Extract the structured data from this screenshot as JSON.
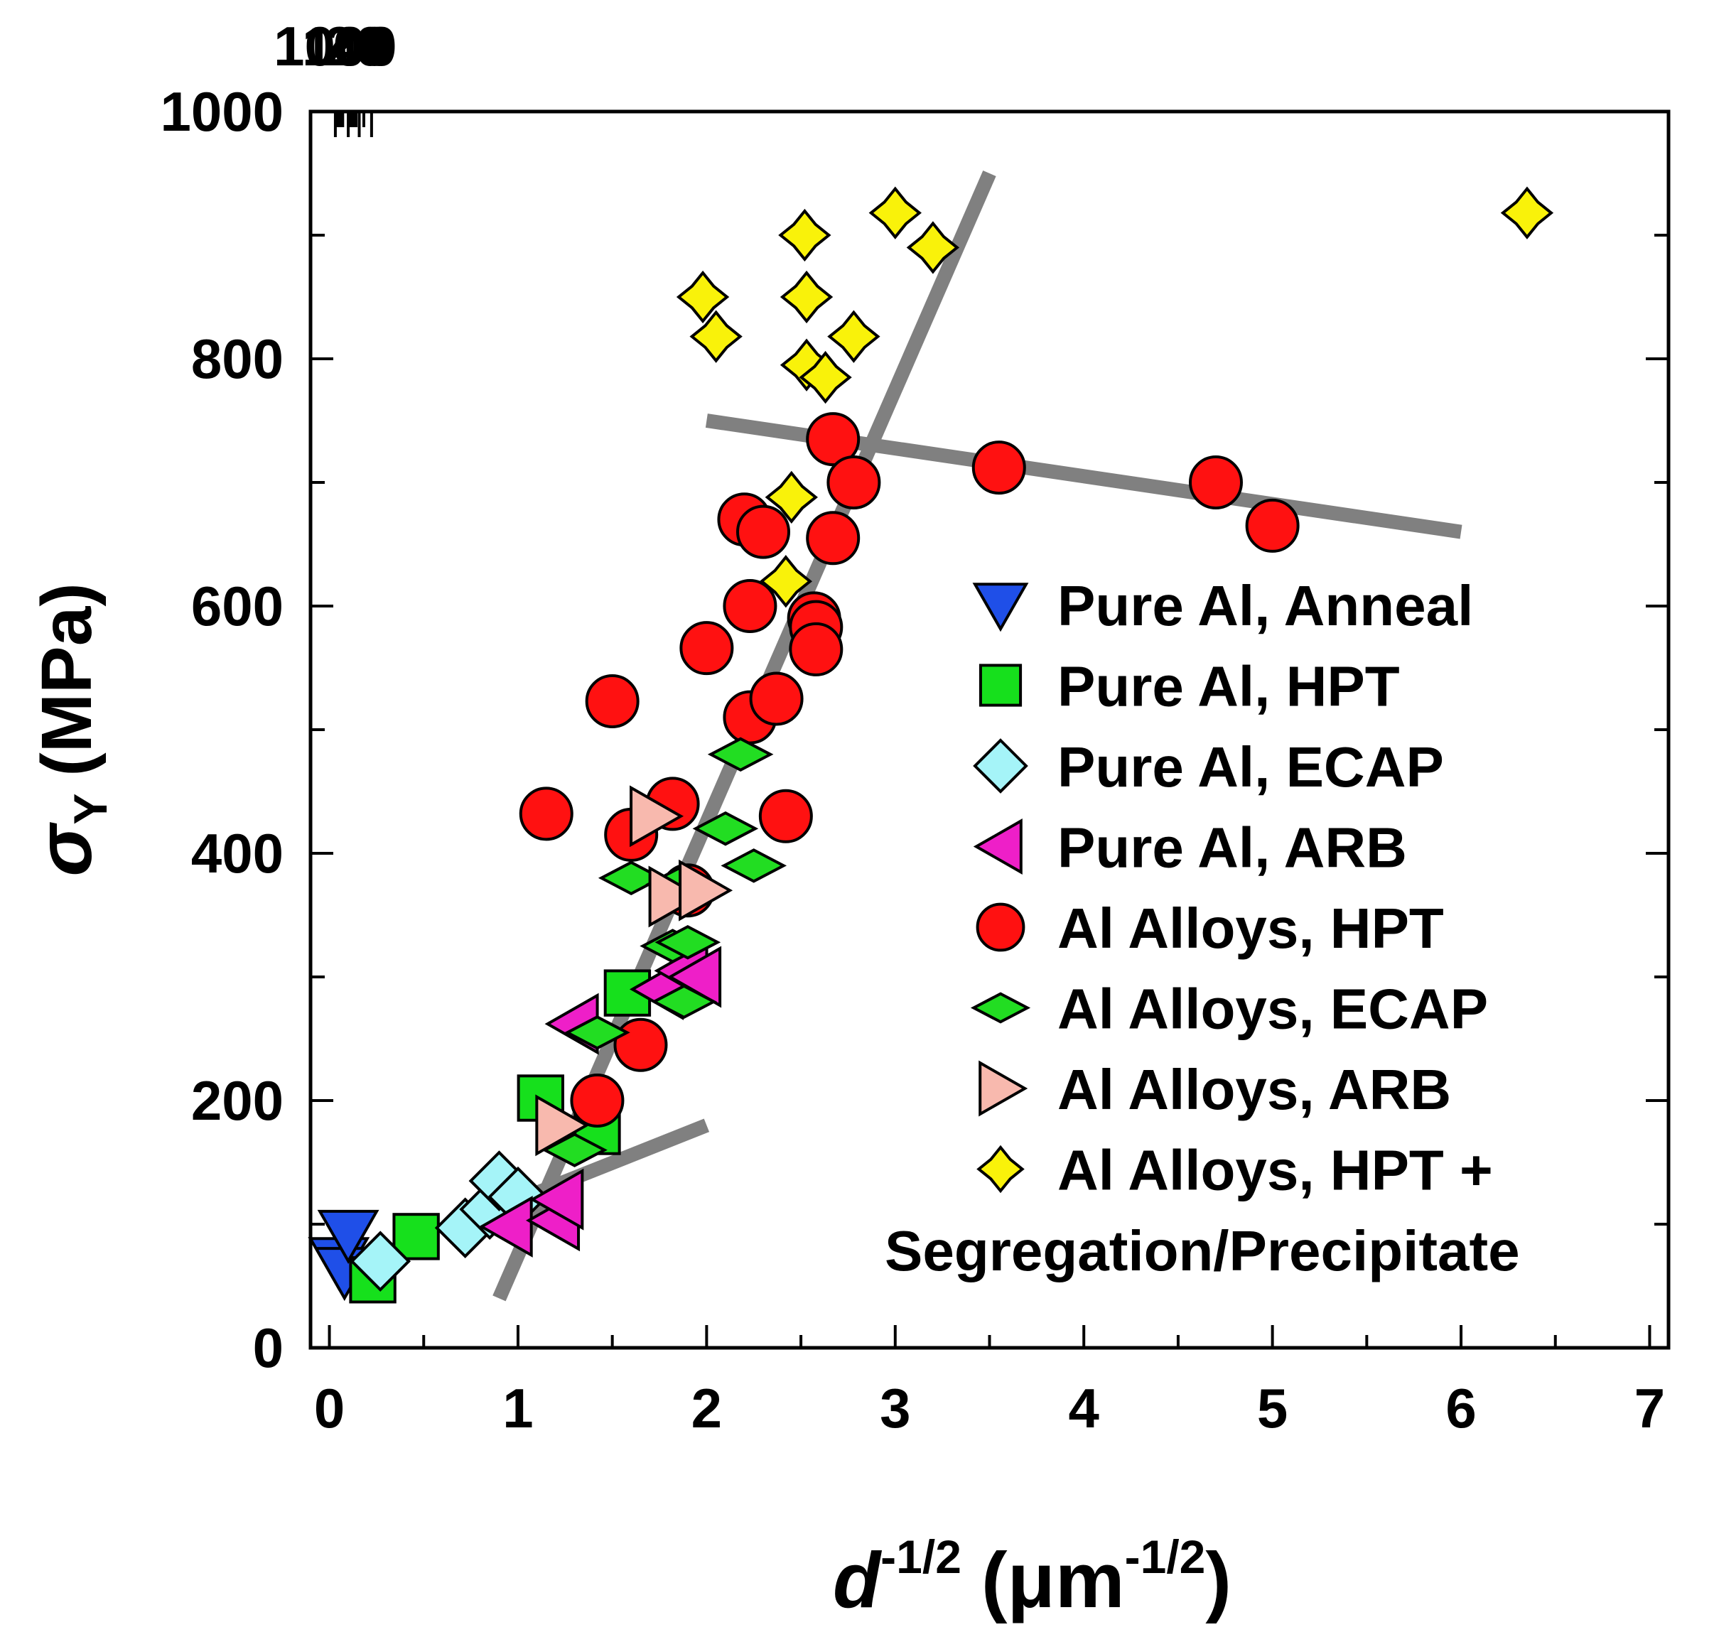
{
  "chart_data": {
    "type": "scatter",
    "title": "",
    "xlabel": {
      "base": "d",
      "exponent": "-1/2",
      "unit_open": "(",
      "unit": "μm",
      "unit_exponent": "-1/2",
      "unit_close": ")"
    },
    "ylabel": {
      "symbol": "σ",
      "subscript": "Y",
      "unit": "(MPa)"
    },
    "xlim": [
      -0.1,
      7.1
    ],
    "ylim": [
      0,
      1000
    ],
    "x_ticks": [
      0,
      1,
      2,
      3,
      4,
      5,
      6,
      7
    ],
    "x_tick_labels": [
      "0",
      "1",
      "2",
      "3",
      "4",
      "5",
      "6",
      "7"
    ],
    "y_ticks": [
      0,
      200,
      400,
      600,
      800,
      1000
    ],
    "y_tick_labels": [
      "0",
      "200",
      "400",
      "600",
      "800",
      "1000"
    ],
    "y_minor_ticks": [
      100,
      300,
      500,
      700,
      900
    ],
    "top_axis": {
      "label_values": [
        1000,
        100,
        40,
        20
      ],
      "labels": [
        "1000",
        "100",
        "40",
        "20"
      ],
      "minor_d_values": [
        900,
        800,
        700,
        600,
        500,
        400,
        300,
        200,
        90,
        80,
        70,
        60,
        50,
        30
      ]
    },
    "fit_lines": [
      {
        "x": [
          0.6,
          2.0
        ],
        "y": [
          95,
          180
        ]
      },
      {
        "x": [
          0.9,
          3.5
        ],
        "y": [
          40,
          950
        ]
      },
      {
        "x": [
          2.0,
          6.0
        ],
        "y": [
          750,
          660
        ]
      }
    ],
    "legend_position": "lower-right",
    "series": [
      {
        "name": "Pure Al, Anneal",
        "marker": "triangle-down",
        "color": "#1f4fe8",
        "points": [
          [
            0.05,
            70
          ],
          [
            0.08,
            62
          ],
          [
            0.1,
            92
          ]
        ]
      },
      {
        "name": "Pure Al, HPT",
        "marker": "square",
        "color": "#16e01c",
        "points": [
          [
            0.23,
            55
          ],
          [
            0.46,
            90
          ],
          [
            1.12,
            202
          ],
          [
            1.42,
            175
          ],
          [
            1.58,
            287
          ]
        ]
      },
      {
        "name": "Pure Al, ECAP",
        "marker": "diamond",
        "color": "#a5f4f8",
        "points": [
          [
            0.27,
            70
          ],
          [
            0.72,
            97
          ],
          [
            0.85,
            112
          ],
          [
            0.9,
            135
          ],
          [
            1.0,
            122
          ]
        ]
      },
      {
        "name": "Pure Al, ARB",
        "marker": "triangle-left",
        "color": "#ee1fc8",
        "points": [
          [
            0.95,
            98
          ],
          [
            1.2,
            103
          ],
          [
            1.22,
            120
          ],
          [
            1.3,
            262
          ],
          [
            1.75,
            290
          ],
          [
            1.88,
            305
          ],
          [
            1.95,
            300
          ]
        ]
      },
      {
        "name": "Al Alloys, HPT",
        "marker": "circle",
        "color": "#ff1111",
        "points": [
          [
            1.15,
            432
          ],
          [
            1.42,
            200
          ],
          [
            1.5,
            523
          ],
          [
            1.6,
            415
          ],
          [
            1.65,
            245
          ],
          [
            1.82,
            440
          ],
          [
            1.9,
            370
          ],
          [
            2.0,
            566
          ],
          [
            2.2,
            670
          ],
          [
            2.23,
            600
          ],
          [
            2.23,
            510
          ],
          [
            2.3,
            660
          ],
          [
            2.37,
            525
          ],
          [
            2.42,
            430
          ],
          [
            2.57,
            590
          ],
          [
            2.58,
            583
          ],
          [
            2.58,
            565
          ],
          [
            2.67,
            735
          ],
          [
            2.67,
            655
          ],
          [
            2.78,
            700
          ],
          [
            3.55,
            712
          ],
          [
            4.7,
            700
          ],
          [
            5.0,
            665
          ]
        ]
      },
      {
        "name": "Al Alloys, ECAP",
        "marker": "diamond-wide",
        "color": "#22dd22",
        "points": [
          [
            1.3,
            160
          ],
          [
            1.42,
            255
          ],
          [
            1.6,
            380
          ],
          [
            1.82,
            325
          ],
          [
            1.85,
            375
          ],
          [
            1.88,
            280
          ],
          [
            1.9,
            328
          ],
          [
            2.1,
            420
          ],
          [
            2.18,
            480
          ],
          [
            2.25,
            390
          ]
        ]
      },
      {
        "name": "Al Alloys, ARB",
        "marker": "triangle-right",
        "color": "#f8b9ae",
        "points": [
          [
            1.22,
            180
          ],
          [
            1.72,
            430
          ],
          [
            1.82,
            365
          ],
          [
            1.98,
            370
          ]
        ]
      },
      {
        "name": "Al Alloys, HPT + Segregation/Precipitate",
        "marker": "star4",
        "color": "#f9f20a",
        "points": [
          [
            1.98,
            850
          ],
          [
            2.05,
            818
          ],
          [
            2.42,
            620
          ],
          [
            2.45,
            688
          ],
          [
            2.52,
            900
          ],
          [
            2.53,
            850
          ],
          [
            2.53,
            795
          ],
          [
            2.63,
            785
          ],
          [
            2.78,
            818
          ],
          [
            3.0,
            918
          ],
          [
            3.2,
            890
          ],
          [
            6.35,
            918
          ]
        ]
      }
    ]
  },
  "legend": {
    "entries": [
      {
        "label": "Pure Al, Anneal"
      },
      {
        "label": "Pure Al, HPT"
      },
      {
        "label": "Pure Al, ECAP"
      },
      {
        "label": "Pure Al, ARB"
      },
      {
        "label": "Al Alloys, HPT"
      },
      {
        "label": "Al Alloys, ECAP"
      },
      {
        "label": "Al Alloys, ARB"
      },
      {
        "label": "Al Alloys, HPT +"
      }
    ],
    "continuation": "Segregation/Precipitate"
  }
}
